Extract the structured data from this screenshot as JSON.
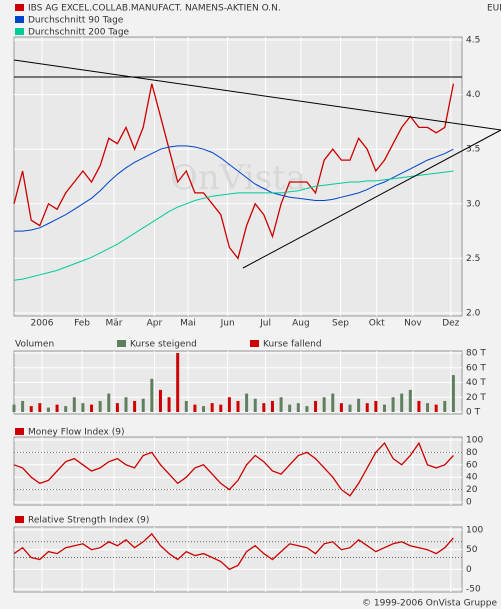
{
  "chart_data": [
    {
      "type": "line",
      "title": "IBS AG EXCEL.COLLAB.MANUFACT. NAMENS-AKTIEN O.N.",
      "y_label": "EUR",
      "watermark": "OnVista",
      "x": [
        0,
        1,
        2,
        3,
        4,
        5,
        6,
        7,
        8,
        9,
        10,
        11,
        12,
        13,
        14,
        15,
        16,
        17,
        18,
        19,
        20,
        21,
        22,
        23,
        24,
        25,
        26,
        27,
        28,
        29,
        30,
        31,
        32,
        33,
        34,
        35,
        36,
        37,
        38,
        39,
        40,
        41,
        42,
        43,
        44,
        45,
        46,
        47,
        48,
        49,
        50,
        51
      ],
      "xlim": [
        0,
        52
      ],
      "xticks": [
        {
          "value": 3.25,
          "label": "2006"
        },
        {
          "value": 7.9,
          "label": "Feb"
        },
        {
          "value": 11.6,
          "label": "Mär"
        },
        {
          "value": 16.3,
          "label": "Apr"
        },
        {
          "value": 20.2,
          "label": "Mai"
        },
        {
          "value": 24.8,
          "label": "Jun"
        },
        {
          "value": 29.2,
          "label": "Jul"
        },
        {
          "value": 33.3,
          "label": "Aug"
        },
        {
          "value": 37.9,
          "label": "Sep"
        },
        {
          "value": 42.1,
          "label": "Okt"
        },
        {
          "value": 46.3,
          "label": "Nov"
        },
        {
          "value": 50.7,
          "label": "Dez"
        }
      ],
      "ylim": [
        2,
        4.5
      ],
      "yticks": [
        {
          "value": 2,
          "label": "2.0"
        },
        2.5,
        {
          "value": 3,
          "label": "3.0"
        },
        3.5,
        {
          "value": 4,
          "label": "4.0"
        },
        4.5
      ],
      "grid": true,
      "series": [
        {
          "name": "IBS AG EXCEL.COLLAB.MANUFACT. NAMENS-AKTIEN O.N.",
          "color": "#cc0000",
          "values": [
            3.0,
            3.3,
            2.85,
            2.8,
            3.0,
            2.95,
            3.1,
            3.2,
            3.3,
            3.2,
            3.35,
            3.6,
            3.55,
            3.7,
            3.5,
            3.7,
            4.1,
            3.8,
            3.5,
            3.2,
            3.3,
            3.1,
            3.1,
            3.0,
            2.9,
            2.6,
            2.5,
            2.8,
            3.0,
            2.9,
            2.7,
            3.0,
            3.2,
            3.2,
            3.2,
            3.1,
            3.4,
            3.5,
            3.4,
            3.4,
            3.6,
            3.5,
            3.3,
            3.4,
            3.55,
            3.7,
            3.8,
            3.7,
            3.7,
            3.65,
            3.7,
            4.1
          ]
        },
        {
          "name": "Durchschnitt 90 Tage",
          "color": "#0044cc",
          "values": [
            2.75,
            2.75,
            2.76,
            2.78,
            2.82,
            2.86,
            2.9,
            2.95,
            3.0,
            3.05,
            3.12,
            3.2,
            3.27,
            3.33,
            3.38,
            3.42,
            3.46,
            3.5,
            3.52,
            3.53,
            3.53,
            3.52,
            3.5,
            3.47,
            3.42,
            3.36,
            3.3,
            3.24,
            3.18,
            3.14,
            3.1,
            3.08,
            3.06,
            3.05,
            3.04,
            3.03,
            3.03,
            3.04,
            3.06,
            3.08,
            3.1,
            3.13,
            3.17,
            3.2,
            3.24,
            3.28,
            3.32,
            3.36,
            3.4,
            3.43,
            3.46,
            3.5
          ]
        },
        {
          "name": "Durchschnitt 200 Tage",
          "color": "#00cc99",
          "values": [
            2.3,
            2.31,
            2.33,
            2.35,
            2.37,
            2.39,
            2.42,
            2.45,
            2.48,
            2.51,
            2.55,
            2.59,
            2.63,
            2.68,
            2.73,
            2.78,
            2.83,
            2.88,
            2.93,
            2.97,
            3.0,
            3.03,
            3.05,
            3.07,
            3.08,
            3.09,
            3.1,
            3.1,
            3.1,
            3.1,
            3.1,
            3.1,
            3.11,
            3.12,
            3.14,
            3.16,
            3.17,
            3.18,
            3.19,
            3.2,
            3.2,
            3.21,
            3.21,
            3.22,
            3.23,
            3.24,
            3.25,
            3.26,
            3.27,
            3.28,
            3.29,
            3.3
          ]
        }
      ]
    },
    {
      "type": "bar",
      "title": "Volumen",
      "ylim": [
        0,
        80
      ],
      "yticks": [
        {
          "value": 0,
          "label": "0 T"
        },
        {
          "value": 20,
          "label": "20 T"
        },
        {
          "value": 40,
          "label": "40 T"
        },
        {
          "value": 60,
          "label": "60 T"
        },
        {
          "value": 80,
          "label": "80 T"
        }
      ],
      "series": [
        {
          "name": "Kurse steigend",
          "color": "#5f7f5f",
          "values": [
            10,
            15,
            null,
            null,
            6,
            null,
            8,
            20,
            12,
            null,
            15,
            25,
            null,
            20,
            null,
            18,
            45,
            null,
            null,
            null,
            15,
            null,
            8,
            null,
            null,
            null,
            null,
            25,
            18,
            null,
            null,
            20,
            10,
            12,
            8,
            null,
            20,
            25,
            null,
            10,
            18,
            null,
            null,
            10,
            20,
            25,
            30,
            null,
            12,
            null,
            15,
            50
          ]
        },
        {
          "name": "Kurse fallend",
          "color": "#cc0000",
          "values": [
            null,
            null,
            8,
            12,
            null,
            10,
            null,
            null,
            null,
            10,
            null,
            null,
            12,
            null,
            15,
            null,
            null,
            30,
            20,
            80,
            null,
            10,
            null,
            12,
            10,
            20,
            15,
            null,
            null,
            12,
            15,
            null,
            null,
            null,
            null,
            15,
            null,
            null,
            12,
            null,
            null,
            12,
            15,
            null,
            null,
            null,
            null,
            15,
            null,
            10,
            null,
            null
          ]
        }
      ]
    },
    {
      "type": "line",
      "title": "Money Flow Index (9)",
      "ylim": [
        0,
        100
      ],
      "yticks": [
        0,
        20,
        40,
        60,
        80,
        100
      ],
      "ref_lines": [
        20,
        80
      ],
      "series": [
        {
          "name": "Money Flow Index (9)",
          "color": "#cc0000",
          "values": [
            60,
            55,
            40,
            30,
            35,
            50,
            65,
            70,
            60,
            50,
            55,
            65,
            70,
            60,
            55,
            75,
            80,
            60,
            45,
            30,
            40,
            55,
            60,
            45,
            30,
            20,
            35,
            60,
            75,
            65,
            50,
            45,
            60,
            75,
            80,
            70,
            55,
            40,
            20,
            10,
            30,
            55,
            80,
            95,
            70,
            60,
            75,
            95,
            60,
            55,
            60,
            75
          ]
        }
      ]
    },
    {
      "type": "line",
      "title": "Relative Strength Index (9)",
      "ylim": [
        -50,
        100
      ],
      "yticks": [
        -50,
        0,
        50,
        100
      ],
      "ref_lines": [
        30,
        70
      ],
      "series": [
        {
          "name": "Relative Strength Index (9)",
          "color": "#cc0000",
          "values": [
            40,
            55,
            30,
            25,
            45,
            40,
            55,
            60,
            65,
            50,
            55,
            70,
            60,
            75,
            55,
            70,
            90,
            60,
            40,
            25,
            45,
            35,
            40,
            30,
            20,
            0,
            10,
            45,
            60,
            40,
            25,
            45,
            65,
            60,
            55,
            40,
            65,
            70,
            50,
            55,
            75,
            60,
            45,
            55,
            65,
            70,
            60,
            55,
            50,
            40,
            55,
            80
          ]
        }
      ]
    }
  ],
  "footer": "© 1999-2006 OnVista Gruppe"
}
